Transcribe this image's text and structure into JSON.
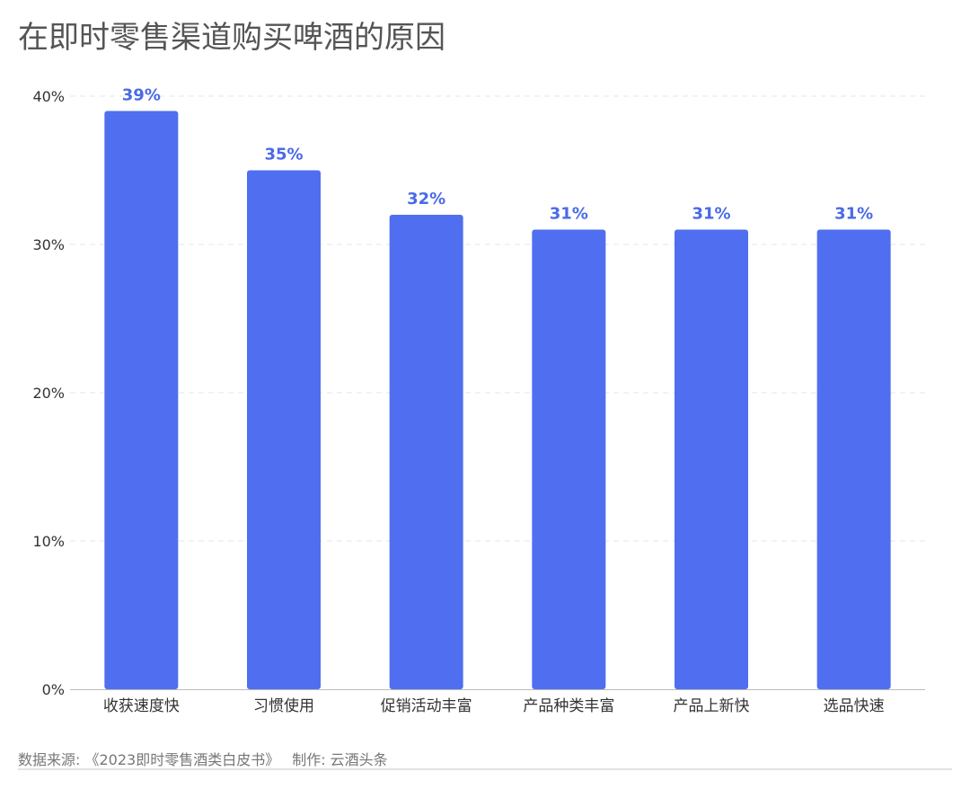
{
  "title": "在即时零售渠道购买啤酒的原因",
  "source": "数据来源: 《2023即时零售酒类白皮书》",
  "credit": "制作: 云酒头条",
  "colors": {
    "bar": "#4f6ff0",
    "label": "#4a6ae6",
    "grid": "#e6e6e6",
    "axis": "#bbbbbb",
    "tick_text": "#333333"
  },
  "chart_data": {
    "type": "bar",
    "categories": [
      "收获速度快",
      "习惯使用",
      "促销活动丰富",
      "产品种类丰富",
      "产品上新快",
      "选品快速"
    ],
    "values": [
      39,
      35,
      32,
      31,
      31,
      31
    ],
    "value_labels": [
      "39%",
      "35%",
      "32%",
      "31%",
      "31%",
      "31%"
    ],
    "ylim": [
      0,
      40
    ],
    "yticks": [
      0,
      10,
      20,
      30,
      40
    ],
    "ytick_labels": [
      "0%",
      "10%",
      "20%",
      "30%",
      "40%"
    ],
    "grid": true,
    "xlabel": "",
    "ylabel": ""
  }
}
